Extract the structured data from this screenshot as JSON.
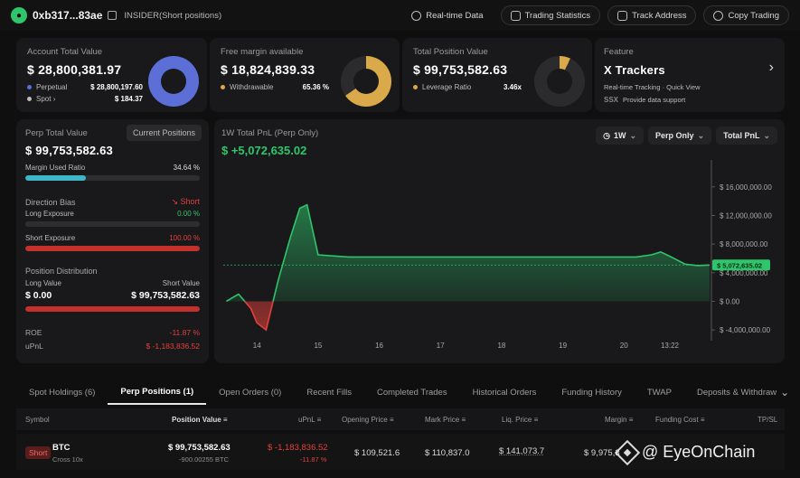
{
  "header": {
    "address": "0xb317...83ae",
    "tag": "INSIDER(Short positions)",
    "buttons": [
      "Real-time Data",
      "Trading Statistics",
      "Track Address",
      "Copy Trading"
    ]
  },
  "account": {
    "title": "Account Total Value",
    "value": "$ 28,800,381.97",
    "perpetual_label": "Perpetual",
    "perpetual_value": "$ 28,800,197.60",
    "spot_label": "Spot",
    "spot_value": "$ 184.37"
  },
  "margin": {
    "title": "Free margin available",
    "value": "$ 18,824,839.33",
    "withdrawable_label": "Withdrawable",
    "withdrawable_pct": "65.36 %",
    "fraction": 0.6536
  },
  "position": {
    "title": "Total Position Value",
    "value": "$ 99,753,582.63",
    "leverage_label": "Leverage Ratio",
    "leverage_value": "3.46x"
  },
  "feature": {
    "title": "Feature",
    "name": "X Trackers",
    "sub": "Real-time Tracking · Quick View",
    "support": "Provide data support",
    "badge": "SSX"
  },
  "perp": {
    "title": "Perp Total Value",
    "button": "Current Positions",
    "value": "$ 99,753,582.63",
    "margin_used_label": "Margin Used Ratio",
    "margin_used_pct": "34.64 %",
    "margin_used_fraction": 0.3464,
    "direction_label": "Direction Bias",
    "direction_value": "Short",
    "long_label": "Long Exposure",
    "long_pct": "0.00 %",
    "short_label": "Short Exposure",
    "short_pct": "100.00 %",
    "distribution_label": "Position Distribution",
    "long_value_label": "Long Value",
    "short_value_label": "Short Value",
    "long_value": "$ 0.00",
    "short_value": "$ 99,753,582.63",
    "roe_label": "ROE",
    "roe_value": "-11.87 %",
    "upnl_label": "uPnL",
    "upnl_value": "$ -1,183,836.52"
  },
  "pnl_chart": {
    "title": "1W Total PnL (Perp Only)",
    "value": "$ +5,072,635.02",
    "range_btn": "1W",
    "filter_btn": "Perp Only",
    "metric_btn": "Total PnL",
    "current_tag": "$ 5,072,635.02"
  },
  "chart_data": {
    "type": "area",
    "title": "1W Total PnL (Perp Only)",
    "x_labels": [
      "14",
      "15",
      "16",
      "17",
      "18",
      "19",
      "20",
      "13:22"
    ],
    "y_ticks": [
      "$ 16,000,000.00",
      "$ 12,000,000.00",
      "$ 8,000,000.00",
      "$ 4,000,000.00",
      "$ 0.00",
      "$ -4,000,000.00"
    ],
    "y_tick_values": [
      16000000,
      12000000,
      8000000,
      4000000,
      0,
      -4000000
    ],
    "ylim": [
      -5500000,
      18500000
    ],
    "x": [
      13.5,
      13.7,
      13.9,
      14.0,
      14.15,
      14.35,
      14.55,
      14.7,
      14.82,
      15.0,
      15.5,
      16.0,
      17.0,
      18.0,
      19.0,
      19.5,
      19.9,
      20.2,
      20.45,
      20.6,
      20.75,
      21.0,
      21.2,
      21.4
    ],
    "y": [
      0,
      1000000,
      -1000000,
      -3000000,
      -4000000,
      3000000,
      9000000,
      13000000,
      13500000,
      6500000,
      6200000,
      6200000,
      6200000,
      6200000,
      6200000,
      6200000,
      6200000,
      6200000,
      6500000,
      6900000,
      6300000,
      5200000,
      5000000,
      5072635
    ],
    "current": 5072635.02,
    "grid": false
  },
  "tabs": [
    "Spot Holdings (6)",
    "Perp Positions (1)",
    "Open Orders (0)",
    "Recent Fills",
    "Completed Trades",
    "Historical Orders",
    "Funding History",
    "TWAP",
    "Deposits & Withdraw"
  ],
  "table": {
    "columns": [
      "Symbol",
      "Position Value",
      "uPnL",
      "Opening Price",
      "Mark Price",
      "Liq. Price",
      "Margin",
      "Funding Cost",
      "TP/SL"
    ],
    "row": {
      "side": "Short",
      "symbol": "BTC",
      "mode": "Cross 10x",
      "position_value": "$ 99,753,582.63",
      "position_size": "-900.00255 BTC",
      "upnl": "$ -1,183,836.52",
      "upnl_pct": "-11.87 %",
      "opening_price": "$ 109,521.6",
      "mark_price": "$ 110,837.0",
      "liq_price": "$ 141,073.7",
      "margin": "$ 9,975,3"
    }
  },
  "watermark": "@ EyeOnChain",
  "colors": {
    "green": "#2fc56b",
    "red": "#e0413a",
    "blue_donut": "#5b6fd6",
    "gold_donut": "#d9a94a",
    "teal_bar": "#3fb6c8"
  }
}
